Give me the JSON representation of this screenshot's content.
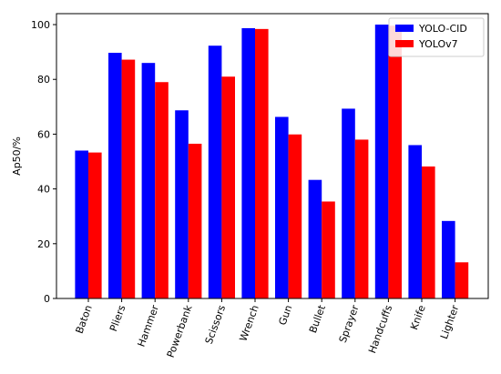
{
  "chart_data": {
    "type": "bar",
    "title": "",
    "xlabel": "",
    "ylabel": "Ap50/%",
    "ylim": [
      0,
      104
    ],
    "yticks": [
      0,
      20,
      40,
      60,
      80,
      100
    ],
    "grid": false,
    "legend_position": "top-right",
    "categories": [
      "Baton",
      "Pliers",
      "Hammer",
      "Powerbank",
      "Scissors",
      "Wrench",
      "Gun",
      "Bullet",
      "Sprayer",
      "Handcuffs",
      "Knife",
      "Lighter"
    ],
    "series": [
      {
        "name": "YOLO-CID",
        "color": "#0000ff",
        "values": [
          54.0,
          89.7,
          86.0,
          68.7,
          92.3,
          98.7,
          66.3,
          43.3,
          69.3,
          100.0,
          56.0,
          28.3
        ]
      },
      {
        "name": "YOLOv7",
        "color": "#ff0000",
        "values": [
          53.3,
          87.2,
          79.0,
          56.5,
          81.0,
          98.4,
          59.9,
          35.4,
          58.0,
          99.6,
          48.2,
          13.2
        ]
      }
    ]
  }
}
